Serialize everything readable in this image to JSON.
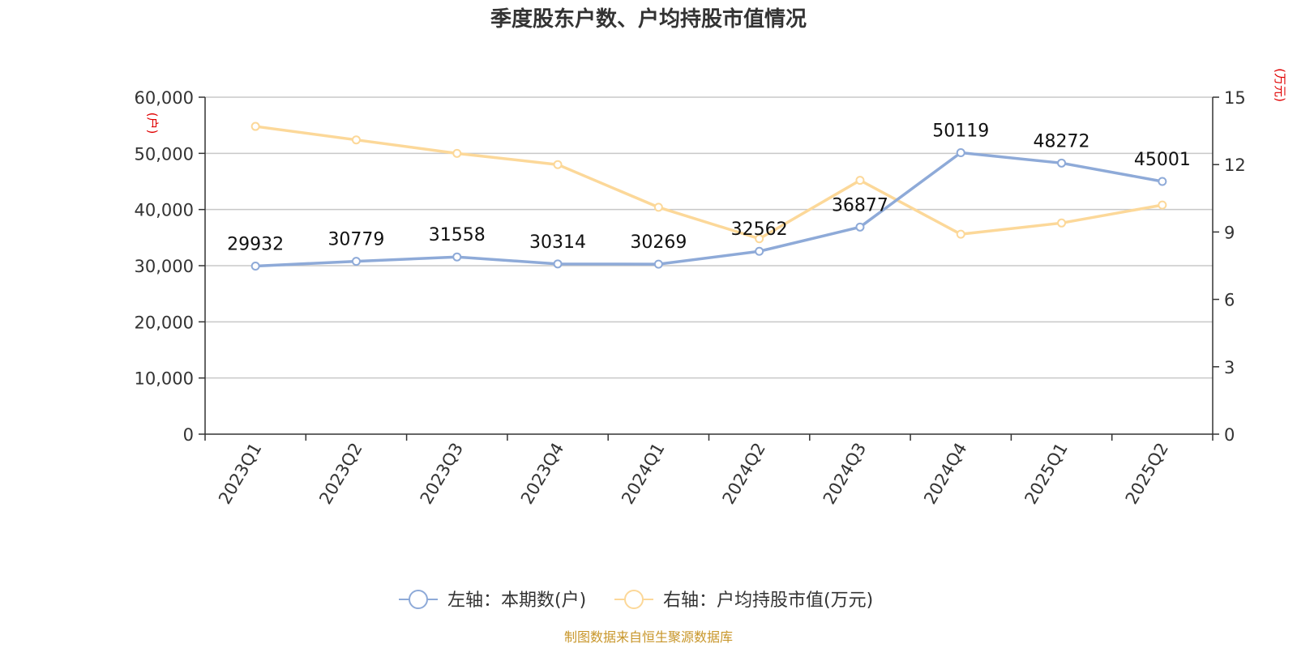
{
  "chart_data": {
    "type": "line",
    "title": "季度股东户数、户均持股市值情况",
    "categories": [
      "2023Q1",
      "2023Q2",
      "2023Q3",
      "2023Q4",
      "2024Q1",
      "2024Q2",
      "2024Q3",
      "2024Q4",
      "2025Q1",
      "2025Q2"
    ],
    "series": [
      {
        "name": "左轴：本期数(户)",
        "axis": "left",
        "color": "#8eaad8",
        "values": [
          29932,
          30779,
          31558,
          30314,
          30269,
          32562,
          36877,
          50119,
          48272,
          45001
        ],
        "labels": [
          "29932",
          "30779",
          "31558",
          "30314",
          "30269",
          "32562",
          "36877",
          "50119",
          "48272",
          "45001"
        ]
      },
      {
        "name": "右轴：户均持股市值(万元)",
        "axis": "right",
        "color": "#fcd899",
        "values": [
          13.7,
          13.1,
          12.5,
          12.0,
          10.1,
          8.7,
          11.3,
          8.9,
          9.4,
          10.2
        ]
      }
    ],
    "y_left": {
      "unit": "(户)",
      "ylim": [
        0,
        60000
      ],
      "ticks": [
        "0",
        "10,000",
        "20,000",
        "30,000",
        "40,000",
        "50,000",
        "60,000"
      ]
    },
    "y_right": {
      "unit": "(万元)",
      "ylim": [
        0,
        15
      ],
      "ticks": [
        "0",
        "3",
        "6",
        "9",
        "12",
        "15"
      ]
    },
    "grid": true,
    "legend_position": "bottom",
    "source": "制图数据来自恒生聚源数据库"
  }
}
